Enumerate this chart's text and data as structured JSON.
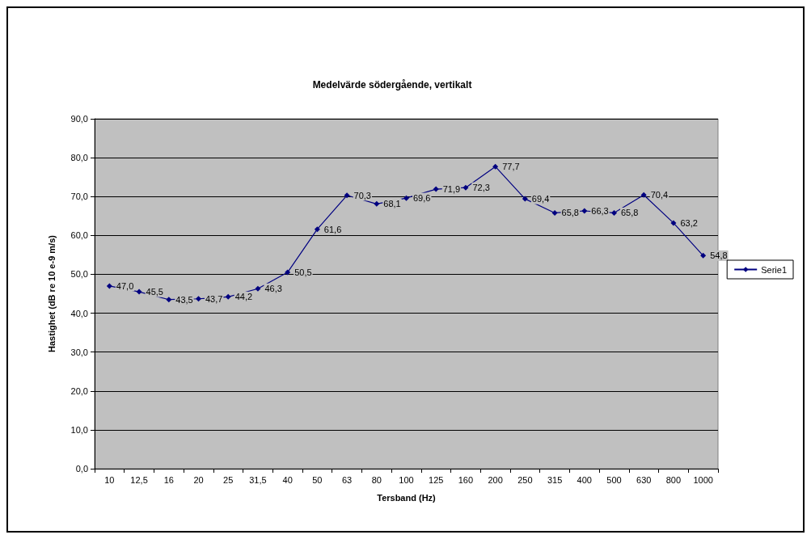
{
  "chart_data": {
    "type": "line",
    "title": "Medelvärde södergående, vertikalt",
    "xlabel": "Tersband (Hz)",
    "ylabel": "Hastighet (dB re 10 e-9 m/s)",
    "categories": [
      "10",
      "12,5",
      "16",
      "20",
      "25",
      "31,5",
      "40",
      "50",
      "63",
      "80",
      "100",
      "125",
      "160",
      "200",
      "250",
      "315",
      "400",
      "500",
      "630",
      "800",
      "1000"
    ],
    "series": [
      {
        "name": "Serie1",
        "color": "#000080",
        "values": [
          47.0,
          45.5,
          43.5,
          43.7,
          44.2,
          46.3,
          50.5,
          61.6,
          70.3,
          68.1,
          69.6,
          71.9,
          72.3,
          77.7,
          69.4,
          65.8,
          66.3,
          65.8,
          70.4,
          63.2,
          54.8
        ],
        "value_labels": [
          "47,0",
          "45,5",
          "43,5",
          "43,7",
          "44,2",
          "46,3",
          "50,5",
          "61,6",
          "70,3",
          "68,1",
          "69,6",
          "71,9",
          "72,3",
          "77,7",
          "69,4",
          "65,8",
          "66,3",
          "65,8",
          "70,4",
          "63,2",
          "54,8"
        ]
      }
    ],
    "ylim": [
      0,
      90
    ],
    "yticks": [
      {
        "value": 0,
        "label": "0,0"
      },
      {
        "value": 10,
        "label": "10,0"
      },
      {
        "value": 20,
        "label": "20,0"
      },
      {
        "value": 30,
        "label": "30,0"
      },
      {
        "value": 40,
        "label": "40,0"
      },
      {
        "value": 50,
        "label": "50,0"
      },
      {
        "value": 60,
        "label": "60,0"
      },
      {
        "value": 70,
        "label": "70,0"
      },
      {
        "value": 80,
        "label": "80,0"
      },
      {
        "value": 90,
        "label": "90,0"
      }
    ],
    "grid": "y",
    "legend": "right",
    "marker": "diamond",
    "line_style": "solid"
  }
}
